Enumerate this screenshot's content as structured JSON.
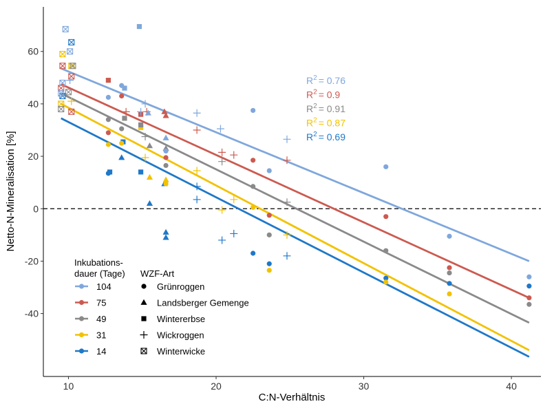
{
  "chart_data": {
    "type": "scatter",
    "xlabel": "C:N-Verhältnis",
    "ylabel": "Netto-N-Mineralisation [%]",
    "xlim": [
      8.3,
      42.0
    ],
    "ylim": [
      -64,
      77
    ],
    "xticks": [
      10,
      20,
      30,
      40
    ],
    "yticks": [
      -40,
      -20,
      0,
      20,
      40,
      60
    ],
    "grid": false,
    "reference_line": {
      "y": 0,
      "style": "dashed"
    },
    "legend_incubation": {
      "title_lines": [
        "Inkubations-",
        "dauer (Tage)"
      ],
      "entries": [
        "104",
        "75",
        "49",
        "31",
        "14"
      ]
    },
    "legend_wzf": {
      "title": "WZF-Art",
      "entries": [
        {
          "label": "Grünroggen",
          "shape": "circle"
        },
        {
          "label": "Landsberger Gemenge",
          "shape": "triangle"
        },
        {
          "label": "Wintererbse",
          "shape": "square"
        },
        {
          "label": "Wickroggen",
          "shape": "plus"
        },
        {
          "label": "Winterwicke",
          "shape": "boxcross"
        }
      ]
    },
    "series": [
      {
        "name": "104",
        "color": "#7FA7DC",
        "r2_label": "R",
        "r2_value": "= 0.76",
        "fit": {
          "x1": 9.5,
          "y1": 53.5,
          "x2": 41.2,
          "y2": -20
        },
        "points": [
          {
            "x": 9.8,
            "y": 68.5,
            "s": "boxcross"
          },
          {
            "x": 10.1,
            "y": 60,
            "s": "boxcross"
          },
          {
            "x": 9.6,
            "y": 48,
            "s": "boxcross"
          },
          {
            "x": 9.5,
            "y": 44,
            "s": "boxcross"
          },
          {
            "x": 10.1,
            "y": 49,
            "s": "plus"
          },
          {
            "x": 14.8,
            "y": 69.5,
            "s": "square"
          },
          {
            "x": 12.7,
            "y": 42.5,
            "s": "circle"
          },
          {
            "x": 13.6,
            "y": 47,
            "s": "circle"
          },
          {
            "x": 13.8,
            "y": 46,
            "s": "square"
          },
          {
            "x": 14.9,
            "y": 37,
            "s": "plus"
          },
          {
            "x": 15.4,
            "y": 36.5,
            "s": "triangle"
          },
          {
            "x": 16.6,
            "y": 27,
            "s": "triangle"
          },
          {
            "x": 16.6,
            "y": 22,
            "s": "circle"
          },
          {
            "x": 15.2,
            "y": 40,
            "s": "plus"
          },
          {
            "x": 18.7,
            "y": 36.5,
            "s": "plus"
          },
          {
            "x": 20.3,
            "y": 30.5,
            "s": "plus"
          },
          {
            "x": 22.5,
            "y": 37.5,
            "s": "circle"
          },
          {
            "x": 23.6,
            "y": 14.5,
            "s": "circle"
          },
          {
            "x": 24.8,
            "y": 26.5,
            "s": "plus"
          },
          {
            "x": 31.5,
            "y": 16,
            "s": "circle"
          },
          {
            "x": 35.8,
            "y": -10.5,
            "s": "circle"
          },
          {
            "x": 41.2,
            "y": -26,
            "s": "circle"
          }
        ]
      },
      {
        "name": "75",
        "color": "#CC5A50",
        "r2_label": "R",
        "r2_value": "= 0.9",
        "fit": {
          "x1": 9.5,
          "y1": 47.5,
          "x2": 41.2,
          "y2": -34
        },
        "points": [
          {
            "x": 9.6,
            "y": 54.5,
            "s": "boxcross"
          },
          {
            "x": 10.2,
            "y": 50.5,
            "s": "boxcross"
          },
          {
            "x": 9.5,
            "y": 46,
            "s": "boxcross"
          },
          {
            "x": 10.2,
            "y": 37,
            "s": "boxcross"
          },
          {
            "x": 12.7,
            "y": 49,
            "s": "square"
          },
          {
            "x": 12.7,
            "y": 29,
            "s": "circle"
          },
          {
            "x": 13.6,
            "y": 43,
            "s": "circle"
          },
          {
            "x": 13.9,
            "y": 37,
            "s": "plus"
          },
          {
            "x": 14.9,
            "y": 36,
            "s": "square"
          },
          {
            "x": 16.5,
            "y": 37,
            "s": "triangle"
          },
          {
            "x": 16.6,
            "y": 35.5,
            "s": "triangle"
          },
          {
            "x": 16.6,
            "y": 19.5,
            "s": "circle"
          },
          {
            "x": 15.3,
            "y": 37,
            "s": "plus"
          },
          {
            "x": 18.7,
            "y": 30,
            "s": "plus"
          },
          {
            "x": 20.4,
            "y": 21.5,
            "s": "plus"
          },
          {
            "x": 21.2,
            "y": 20.5,
            "s": "plus"
          },
          {
            "x": 22.5,
            "y": 18.5,
            "s": "circle"
          },
          {
            "x": 23.6,
            "y": -2.5,
            "s": "circle"
          },
          {
            "x": 24.8,
            "y": 18.5,
            "s": "plus"
          },
          {
            "x": 31.5,
            "y": -3,
            "s": "circle"
          },
          {
            "x": 35.8,
            "y": -22.5,
            "s": "circle"
          },
          {
            "x": 41.2,
            "y": -34,
            "s": "circle"
          }
        ]
      },
      {
        "name": "49",
        "color": "#8A8A8A",
        "r2_label": "R",
        "r2_value": "= 0.91",
        "fit": {
          "x1": 9.5,
          "y1": 44,
          "x2": 41.2,
          "y2": -43.5
        },
        "points": [
          {
            "x": 9.5,
            "y": 38,
            "s": "boxcross"
          },
          {
            "x": 10.0,
            "y": 44.5,
            "s": "boxcross"
          },
          {
            "x": 10.3,
            "y": 54.5,
            "s": "boxcross"
          },
          {
            "x": 12.7,
            "y": 34,
            "s": "circle"
          },
          {
            "x": 13.6,
            "y": 30.5,
            "s": "circle"
          },
          {
            "x": 13.8,
            "y": 34.5,
            "s": "square"
          },
          {
            "x": 14.9,
            "y": 32,
            "s": "square"
          },
          {
            "x": 15.2,
            "y": 27.5,
            "s": "plus"
          },
          {
            "x": 15.5,
            "y": 24,
            "s": "triangle"
          },
          {
            "x": 16.6,
            "y": 23,
            "s": "triangle"
          },
          {
            "x": 16.6,
            "y": 16.5,
            "s": "circle"
          },
          {
            "x": 20.4,
            "y": 18,
            "s": "plus"
          },
          {
            "x": 22.5,
            "y": 8.5,
            "s": "circle"
          },
          {
            "x": 23.6,
            "y": -10,
            "s": "circle"
          },
          {
            "x": 24.8,
            "y": 2.5,
            "s": "plus"
          },
          {
            "x": 31.5,
            "y": -16,
            "s": "circle"
          },
          {
            "x": 35.8,
            "y": -24.5,
            "s": "circle"
          },
          {
            "x": 41.2,
            "y": -36.5,
            "s": "circle"
          }
        ]
      },
      {
        "name": "31",
        "color": "#F2C200",
        "r2_label": "R",
        "r2_value": "= 0.87",
        "fit": {
          "x1": 9.5,
          "y1": 40,
          "x2": 41.2,
          "y2": -54
        },
        "points": [
          {
            "x": 9.6,
            "y": 59,
            "s": "boxcross"
          },
          {
            "x": 10.2,
            "y": 54.5,
            "s": "boxcross"
          },
          {
            "x": 9.5,
            "y": 40,
            "s": "boxcross"
          },
          {
            "x": 10.2,
            "y": 41,
            "s": "plus"
          },
          {
            "x": 12.7,
            "y": 24.5,
            "s": "circle"
          },
          {
            "x": 13.6,
            "y": 25,
            "s": "circle"
          },
          {
            "x": 14.9,
            "y": 31,
            "s": "square"
          },
          {
            "x": 15.2,
            "y": 19.5,
            "s": "plus"
          },
          {
            "x": 15.5,
            "y": 12,
            "s": "triangle"
          },
          {
            "x": 16.6,
            "y": 11,
            "s": "triangle"
          },
          {
            "x": 16.6,
            "y": 9.5,
            "s": "circle"
          },
          {
            "x": 18.7,
            "y": 14.5,
            "s": "plus"
          },
          {
            "x": 20.4,
            "y": -0.5,
            "s": "plus"
          },
          {
            "x": 21.2,
            "y": 3.5,
            "s": "plus"
          },
          {
            "x": 22.5,
            "y": 0.5,
            "s": "circle"
          },
          {
            "x": 23.6,
            "y": -23.5,
            "s": "circle"
          },
          {
            "x": 24.8,
            "y": -10,
            "s": "plus"
          },
          {
            "x": 31.5,
            "y": -28,
            "s": "circle"
          },
          {
            "x": 35.8,
            "y": -32.5,
            "s": "circle"
          }
        ]
      },
      {
        "name": "14",
        "color": "#1F78C8",
        "r2_label": "R",
        "r2_value": "= 0.69",
        "fit": {
          "x1": 9.5,
          "y1": 34.5,
          "x2": 41.2,
          "y2": -56.5
        },
        "points": [
          {
            "x": 10.2,
            "y": 63.5,
            "s": "boxcross"
          },
          {
            "x": 9.6,
            "y": 43,
            "s": "boxcross"
          },
          {
            "x": 12.7,
            "y": 13.5,
            "s": "circle"
          },
          {
            "x": 12.8,
            "y": 14,
            "s": "square"
          },
          {
            "x": 13.6,
            "y": 19.5,
            "s": "triangle"
          },
          {
            "x": 13.7,
            "y": 25.5,
            "s": "square"
          },
          {
            "x": 14.9,
            "y": 14,
            "s": "square"
          },
          {
            "x": 15.5,
            "y": 2,
            "s": "triangle"
          },
          {
            "x": 16.5,
            "y": 9.5,
            "s": "triangle"
          },
          {
            "x": 16.6,
            "y": -9,
            "s": "triangle"
          },
          {
            "x": 16.6,
            "y": -11,
            "s": "triangle"
          },
          {
            "x": 18.7,
            "y": 3.5,
            "s": "plus"
          },
          {
            "x": 18.7,
            "y": 8.5,
            "s": "plus"
          },
          {
            "x": 20.4,
            "y": -12,
            "s": "plus"
          },
          {
            "x": 21.2,
            "y": -9.5,
            "s": "plus"
          },
          {
            "x": 22.5,
            "y": -17,
            "s": "circle"
          },
          {
            "x": 23.6,
            "y": -21,
            "s": "circle"
          },
          {
            "x": 24.8,
            "y": -18,
            "s": "plus"
          },
          {
            "x": 31.5,
            "y": -26.5,
            "s": "circle"
          },
          {
            "x": 35.8,
            "y": -28.5,
            "s": "circle"
          },
          {
            "x": 41.2,
            "y": -29.5,
            "s": "circle"
          }
        ]
      }
    ]
  }
}
